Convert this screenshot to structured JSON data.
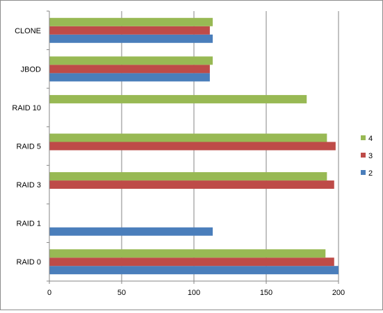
{
  "chart_data": {
    "type": "bar",
    "orientation": "horizontal",
    "title": "",
    "xlabel": "",
    "ylabel": "",
    "categories": [
      "RAID 0",
      "RAID 1",
      "RAID 3",
      "RAID 5",
      "RAID 10",
      "JBOD",
      "CLONE"
    ],
    "series": [
      {
        "name": "2",
        "color": "#4a7ebb",
        "values": [
          200,
          113,
          null,
          null,
          null,
          111,
          113
        ]
      },
      {
        "name": "3",
        "color": "#be4b48",
        "values": [
          197,
          null,
          197,
          198,
          null,
          111,
          111
        ]
      },
      {
        "name": "4",
        "color": "#98b954",
        "values": [
          191,
          null,
          192,
          192,
          178,
          113,
          113
        ]
      }
    ],
    "xlim": [
      0,
      200
    ],
    "xticks": [
      "0",
      "50",
      "100",
      "150",
      "200"
    ],
    "grid": "vertical major gridlines",
    "legend": {
      "position": "right",
      "entries": [
        "4",
        "3",
        "2"
      ]
    }
  }
}
